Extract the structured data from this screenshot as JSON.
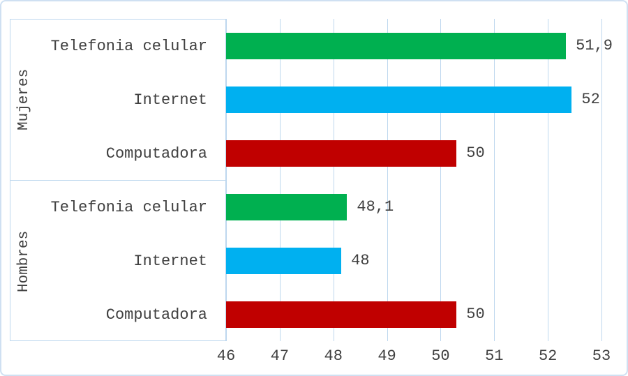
{
  "chart_data": {
    "type": "bar",
    "orientation": "horizontal",
    "title": "",
    "xlabel": "",
    "ylabel": "",
    "xlim": [
      46,
      53
    ],
    "xticks": [
      "46",
      "47",
      "48",
      "49",
      "50",
      "51",
      "52",
      "53"
    ],
    "grid": true,
    "legend": false,
    "groups": [
      {
        "name": "Mujeres",
        "bars": [
          {
            "category": "Telefonia celular",
            "value": 51.9,
            "label": "51,9",
            "color": "#00B050"
          },
          {
            "category": "Internet",
            "value": 52,
            "label": "52",
            "color": "#00B0F0"
          },
          {
            "category": "Computadora",
            "value": 50,
            "label": "50",
            "color": "#C00000"
          }
        ]
      },
      {
        "name": "Hombres",
        "bars": [
          {
            "category": "Telefonia celular",
            "value": 48.1,
            "label": "48,1",
            "color": "#00B050"
          },
          {
            "category": "Internet",
            "value": 48,
            "label": "48",
            "color": "#00B0F0"
          },
          {
            "category": "Computadora",
            "value": 50,
            "label": "50",
            "color": "#C00000"
          }
        ]
      }
    ],
    "colors": {
      "telefonia_celular": "#00B050",
      "internet": "#00B0F0",
      "computadora": "#C00000",
      "gridline": "#bdd7ee",
      "frame_border": "#cfe0f2",
      "text": "#404040"
    }
  }
}
